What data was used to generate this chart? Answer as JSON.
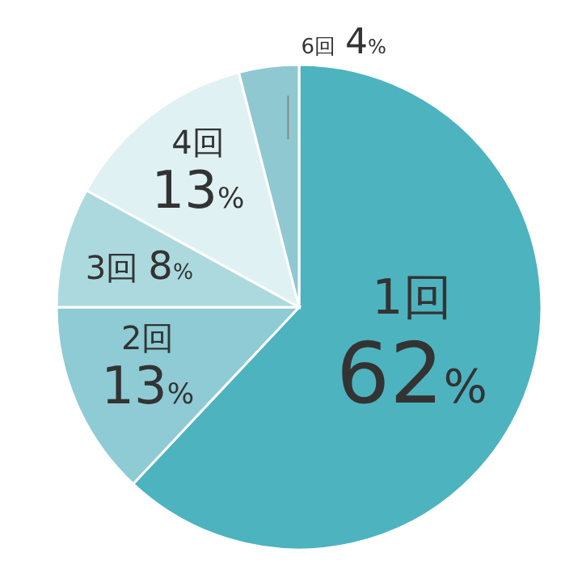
{
  "chart_data": {
    "type": "pie",
    "categories": [
      "1回",
      "2回",
      "3回",
      "4回",
      "6回"
    ],
    "values": [
      62,
      13,
      8,
      13,
      4
    ],
    "value_labels": [
      "62%",
      "13%",
      "8%",
      "13%",
      "4%"
    ],
    "colors": [
      "#4db3bf",
      "#8ecbd4",
      "#acd9de",
      "#e0f1f3",
      "#8fc8d1"
    ]
  }
}
